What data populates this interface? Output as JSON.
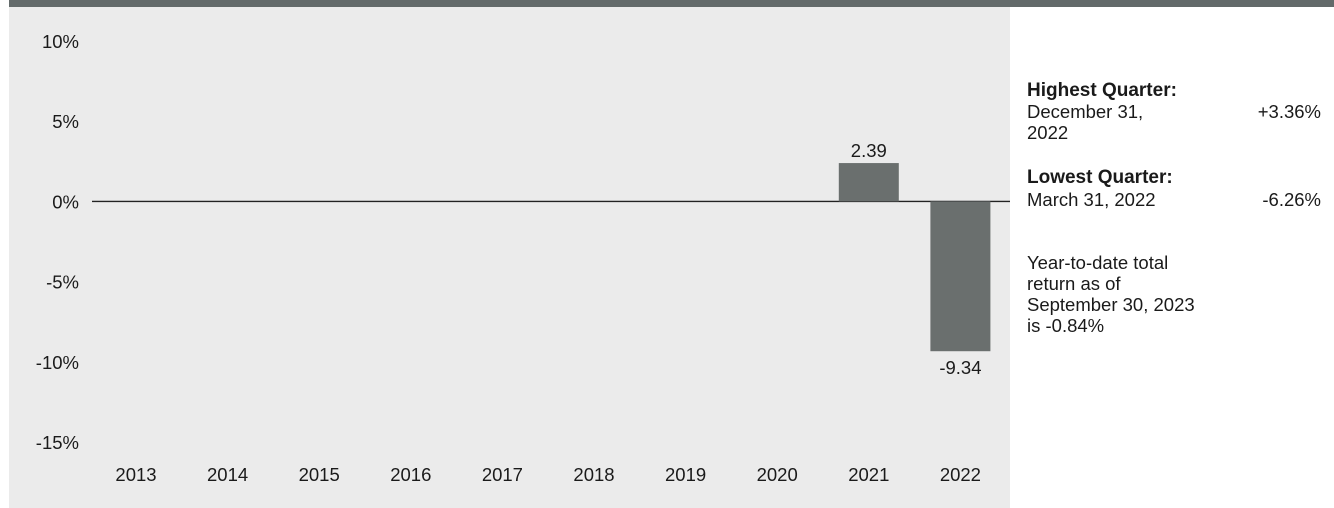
{
  "chart_data": {
    "type": "bar",
    "categories": [
      "2013",
      "2014",
      "2015",
      "2016",
      "2017",
      "2018",
      "2019",
      "2020",
      "2021",
      "2022"
    ],
    "values": [
      null,
      null,
      null,
      null,
      null,
      null,
      null,
      null,
      2.39,
      -9.34
    ],
    "value_labels": [
      "",
      "",
      "",
      "",
      "",
      "",
      "",
      "",
      "2.39",
      "-9.34"
    ],
    "y_ticks": [
      10,
      5,
      0,
      -5,
      -10,
      -15
    ],
    "y_tick_labels": [
      "10%",
      "5%",
      "0%",
      "-5%",
      "-10%",
      "-15%"
    ],
    "ylim": [
      -15,
      10
    ],
    "bar_color": "#6a6f6e",
    "background_color": "#ebebeb",
    "grid": false,
    "title": "",
    "xlabel": "",
    "ylabel": ""
  },
  "sidebar": {
    "highest": {
      "label": "Highest Quarter:",
      "date": "December 31, 2022",
      "value": "+3.36%"
    },
    "lowest": {
      "label": "Lowest Quarter:",
      "date": "March 31, 2022",
      "value": "-6.26%"
    },
    "ytd_note": "Year-to-date total return as of September 30, 2023 is -0.84%"
  }
}
